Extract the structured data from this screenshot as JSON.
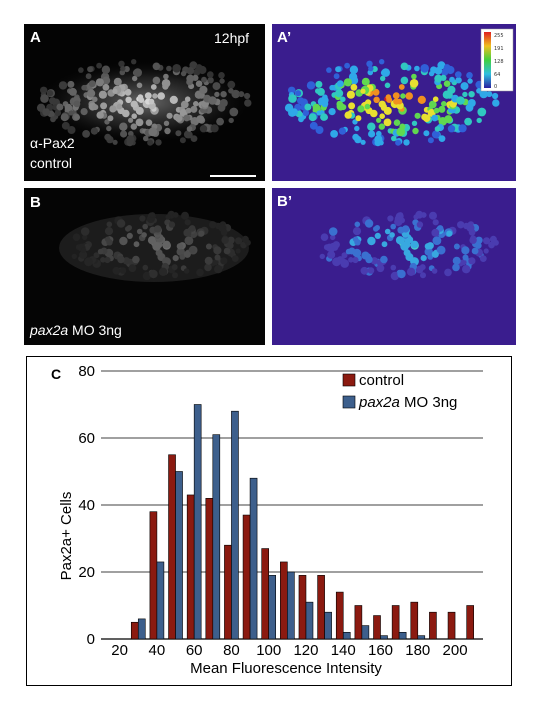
{
  "panels": {
    "a": {
      "letter": "A",
      "stage": "12hpf",
      "stain": "α-Pax2",
      "condition": "control"
    },
    "a_prime": {
      "letter": "A’",
      "colorbar_ticks": [
        "255",
        "191",
        "128",
        "64",
        "0"
      ]
    },
    "b": {
      "letter": "B",
      "condition_gene": "pax2a",
      "condition_rest": " MO 3ng"
    },
    "b_prime": {
      "letter": "B’"
    }
  },
  "figure_c": {
    "letter": "C"
  },
  "chart_data": {
    "type": "bar",
    "xlabel": "Mean Fluorescence Intensity",
    "ylabel": "Pax2a+ Cells",
    "ylim": [
      0,
      80
    ],
    "yticks": [
      0,
      20,
      40,
      60,
      80
    ],
    "xticks": [
      20,
      40,
      60,
      80,
      100,
      120,
      140,
      160,
      180,
      200
    ],
    "grid": true,
    "legend_position": "top-right",
    "categories": [
      30,
      40,
      50,
      60,
      70,
      80,
      90,
      100,
      110,
      120,
      130,
      140,
      150,
      160,
      170,
      180,
      190,
      200,
      210
    ],
    "series": [
      {
        "name": "control",
        "italic_part": "",
        "color": "#8b1a10",
        "values": [
          5,
          38,
          55,
          43,
          42,
          28,
          37,
          27,
          23,
          19,
          19,
          14,
          10,
          7,
          10,
          11,
          8,
          8,
          10
        ]
      },
      {
        "name": " MO 3ng",
        "italic_part": "pax2a",
        "color": "#3d5f8c",
        "values": [
          6,
          23,
          50,
          70,
          61,
          68,
          48,
          19,
          20,
          11,
          8,
          2,
          4,
          1,
          2,
          1,
          0,
          0,
          0
        ]
      }
    ]
  }
}
